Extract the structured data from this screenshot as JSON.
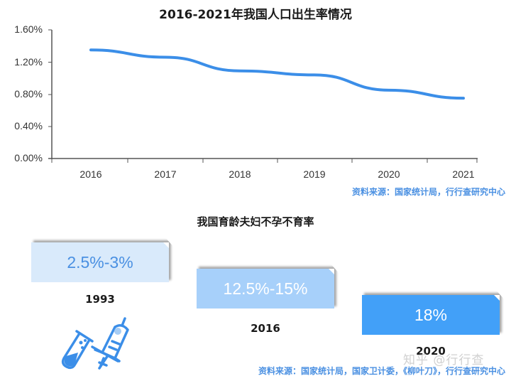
{
  "chart_data": {
    "type": "line",
    "title": "2016-2021年我国人口出生率情况",
    "xlabel": "",
    "ylabel": "",
    "categories": [
      "2016",
      "2017",
      "2018",
      "2019",
      "2020",
      "2021"
    ],
    "series": [
      {
        "name": "人口出生率",
        "values": [
          1.35,
          1.26,
          1.09,
          1.04,
          0.85,
          0.75
        ],
        "color": "#3b8ee8"
      }
    ],
    "yticks": [
      "1.60%",
      "1.20%",
      "0.80%",
      "0.40%",
      "0.00%"
    ],
    "ylim": [
      0,
      1.6
    ],
    "grid": false,
    "legend": "none",
    "source": "资料来源：国家统计局，行行查研究中心"
  },
  "section2": {
    "title": "我国育龄夫妇不孕不育率",
    "items": [
      {
        "year": "1993",
        "rate": "2.5%-3%"
      },
      {
        "year": "2016",
        "rate": "12.5%-15%"
      },
      {
        "year": "2020",
        "rate": "18%"
      }
    ],
    "icon": "test-tube-syringe-icon",
    "source": "资料来源：国家统计局，国家卫计委，《柳叶刀》，行行查研究中心"
  },
  "watermark": "知乎 @行行查",
  "colors": {
    "line": "#3b8ee8",
    "source_text": "#4a90e2",
    "box_light": "#d9eafb",
    "box_mid": "#a7d0fa",
    "box_dark": "#42a0f8"
  }
}
